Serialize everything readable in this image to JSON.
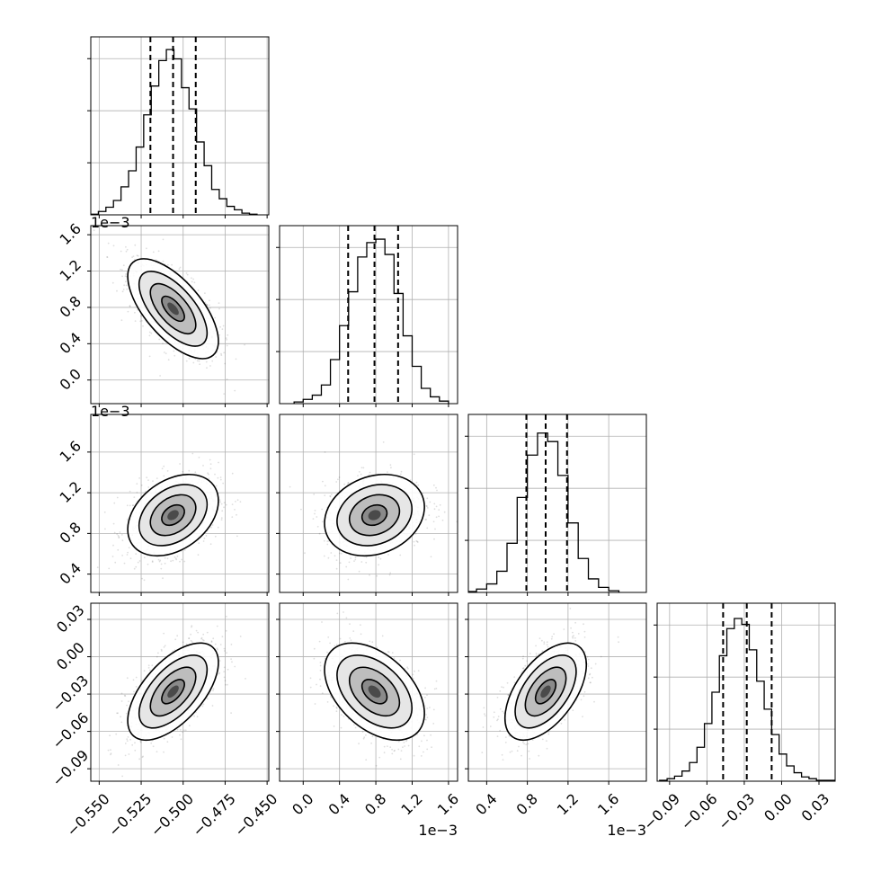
{
  "chart_data": {
    "type": "corner",
    "grid": true,
    "parameters": [
      {
        "range": [
          -0.555,
          -0.449
        ],
        "ticks": [
          -0.55,
          -0.525,
          -0.5,
          -0.475,
          -0.45
        ],
        "tick_labels": [
          "−0.550",
          "−0.525",
          "−0.500",
          "−0.475",
          "−0.450"
        ],
        "offset_text": "",
        "quantiles": [
          -0.5195,
          -0.506,
          -0.4925
        ],
        "histogram": [
          {
            "left": -0.555,
            "right": -0.5505,
            "count": 0.8
          },
          {
            "left": -0.5505,
            "right": -0.546,
            "count": 4
          },
          {
            "left": -0.546,
            "right": -0.5415,
            "count": 9
          },
          {
            "left": -0.5415,
            "right": -0.537,
            "count": 17
          },
          {
            "left": -0.537,
            "right": -0.5325,
            "count": 33
          },
          {
            "left": -0.5325,
            "right": -0.528,
            "count": 52
          },
          {
            "left": -0.528,
            "right": -0.5235,
            "count": 80
          },
          {
            "left": -0.5235,
            "right": -0.519,
            "count": 118
          },
          {
            "left": -0.519,
            "right": -0.5145,
            "count": 152
          },
          {
            "left": -0.5145,
            "right": -0.51,
            "count": 182
          },
          {
            "left": -0.51,
            "right": -0.5055,
            "count": 195
          },
          {
            "left": -0.5055,
            "right": -0.501,
            "count": 184
          },
          {
            "left": -0.501,
            "right": -0.4965,
            "count": 150
          },
          {
            "left": -0.4965,
            "right": -0.492,
            "count": 125
          },
          {
            "left": -0.492,
            "right": -0.4875,
            "count": 86
          },
          {
            "left": -0.4875,
            "right": -0.483,
            "count": 58
          },
          {
            "left": -0.483,
            "right": -0.4785,
            "count": 30
          },
          {
            "left": -0.4785,
            "right": -0.474,
            "count": 19
          },
          {
            "left": -0.474,
            "right": -0.4695,
            "count": 10
          },
          {
            "left": -0.4695,
            "right": -0.465,
            "count": 6
          },
          {
            "left": -0.465,
            "right": -0.4605,
            "count": 2
          },
          {
            "left": -0.4605,
            "right": -0.456,
            "count": 0.8
          }
        ],
        "hist_ymax": 200
      },
      {
        "range": [
          -0.00026,
          0.0017
        ],
        "ticks": [
          0.0,
          0.0004,
          0.0008,
          0.0012,
          0.0016
        ],
        "tick_labels": [
          "0.0",
          "0.4",
          "0.8",
          "1.2",
          "1.6"
        ],
        "offset_text": "1e−3",
        "quantiles": [
          0.000495,
          0.000785,
          0.001045
        ],
        "histogram": [
          {
            "left": -0.0001,
            "right": 0.0,
            "count": 2
          },
          {
            "left": 0.0,
            "right": 0.0001,
            "count": 5
          },
          {
            "left": 0.0001,
            "right": 0.0002,
            "count": 10
          },
          {
            "left": 0.0002,
            "right": 0.0003,
            "count": 22
          },
          {
            "left": 0.0003,
            "right": 0.0004,
            "count": 52
          },
          {
            "left": 0.0004,
            "right": 0.0005,
            "count": 92
          },
          {
            "left": 0.0005,
            "right": 0.0006,
            "count": 132
          },
          {
            "left": 0.0006,
            "right": 0.0007,
            "count": 173
          },
          {
            "left": 0.0007,
            "right": 0.0008,
            "count": 190
          },
          {
            "left": 0.0008,
            "right": 0.0009,
            "count": 194
          },
          {
            "left": 0.0009,
            "right": 0.001,
            "count": 176
          },
          {
            "left": 0.001,
            "right": 0.0011,
            "count": 130
          },
          {
            "left": 0.0011,
            "right": 0.0012,
            "count": 80
          },
          {
            "left": 0.0012,
            "right": 0.0013,
            "count": 44
          },
          {
            "left": 0.0013,
            "right": 0.0014,
            "count": 18
          },
          {
            "left": 0.0014,
            "right": 0.0015,
            "count": 8
          },
          {
            "left": 0.0015,
            "right": 0.0016,
            "count": 3
          }
        ],
        "hist_ymax": 200
      },
      {
        "range": [
          0.00022,
          0.00197
        ],
        "ticks": [
          0.0004,
          0.0008,
          0.0012,
          0.0016
        ],
        "tick_labels": [
          "0.4",
          "0.8",
          "1.2",
          "1.6"
        ],
        "offset_text": "1e−3",
        "quantiles": [
          0.00079,
          0.00098,
          0.00119
        ],
        "histogram": [
          {
            "left": 0.00022,
            "right": 0.0003,
            "count": 1
          },
          {
            "left": 0.0003,
            "right": 0.0004,
            "count": 4
          },
          {
            "left": 0.0004,
            "right": 0.0005,
            "count": 10
          },
          {
            "left": 0.0005,
            "right": 0.0006,
            "count": 25
          },
          {
            "left": 0.0006,
            "right": 0.0007,
            "count": 58
          },
          {
            "left": 0.0007,
            "right": 0.0008,
            "count": 112
          },
          {
            "left": 0.0008,
            "right": 0.0009,
            "count": 162
          },
          {
            "left": 0.0009,
            "right": 0.001,
            "count": 188
          },
          {
            "left": 0.001,
            "right": 0.0011,
            "count": 178
          },
          {
            "left": 0.0011,
            "right": 0.0012,
            "count": 138
          },
          {
            "left": 0.0012,
            "right": 0.0013,
            "count": 82
          },
          {
            "left": 0.0013,
            "right": 0.0014,
            "count": 40
          },
          {
            "left": 0.0014,
            "right": 0.0015,
            "count": 16
          },
          {
            "left": 0.0015,
            "right": 0.0016,
            "count": 6
          },
          {
            "left": 0.0016,
            "right": 0.0017,
            "count": 2
          }
        ],
        "hist_ymax": 200
      },
      {
        "range": [
          -0.1,
          0.043
        ],
        "ticks": [
          -0.09,
          -0.06,
          -0.03,
          0.0,
          0.03
        ],
        "tick_labels": [
          "−0.09",
          "−0.06",
          "−0.03",
          "0.00",
          "0.03"
        ],
        "offset_text": "",
        "quantiles": [
          -0.047,
          -0.028,
          -0.008
        ],
        "histogram": [
          {
            "left": -0.098,
            "right": -0.092,
            "count": 1
          },
          {
            "left": -0.092,
            "right": -0.086,
            "count": 3
          },
          {
            "left": -0.086,
            "right": -0.08,
            "count": 6
          },
          {
            "left": -0.08,
            "right": -0.074,
            "count": 12
          },
          {
            "left": -0.074,
            "right": -0.068,
            "count": 22
          },
          {
            "left": -0.068,
            "right": -0.062,
            "count": 40
          },
          {
            "left": -0.062,
            "right": -0.056,
            "count": 68
          },
          {
            "left": -0.056,
            "right": -0.05,
            "count": 105
          },
          {
            "left": -0.05,
            "right": -0.044,
            "count": 148
          },
          {
            "left": -0.044,
            "right": -0.038,
            "count": 180
          },
          {
            "left": -0.038,
            "right": -0.032,
            "count": 192
          },
          {
            "left": -0.032,
            "right": -0.026,
            "count": 185
          },
          {
            "left": -0.026,
            "right": -0.02,
            "count": 155
          },
          {
            "left": -0.02,
            "right": -0.014,
            "count": 118
          },
          {
            "left": -0.014,
            "right": -0.008,
            "count": 85
          },
          {
            "left": -0.008,
            "right": -0.002,
            "count": 55
          },
          {
            "left": -0.002,
            "right": 0.004,
            "count": 32
          },
          {
            "left": 0.004,
            "right": 0.01,
            "count": 18
          },
          {
            "left": 0.01,
            "right": 0.016,
            "count": 10
          },
          {
            "left": 0.016,
            "right": 0.022,
            "count": 5
          },
          {
            "left": 0.022,
            "right": 0.028,
            "count": 3
          },
          {
            "left": 0.028,
            "right": 0.034,
            "count": 1
          },
          {
            "left": 0.034,
            "right": 0.043,
            "count": 1
          }
        ],
        "hist_ymax": 200
      }
    ],
    "correlations": [
      {
        "row": 1,
        "col": 0,
        "rho": -0.65
      },
      {
        "row": 2,
        "col": 0,
        "rho": 0.35
      },
      {
        "row": 2,
        "col": 1,
        "rho": 0.2
      },
      {
        "row": 3,
        "col": 0,
        "rho": 0.6
      },
      {
        "row": 3,
        "col": 1,
        "rho": -0.45
      },
      {
        "row": 3,
        "col": 2,
        "rho": 0.55
      }
    ],
    "contour_levels_sigma": [
      0.5,
      1.0,
      1.5,
      2.0
    ]
  }
}
